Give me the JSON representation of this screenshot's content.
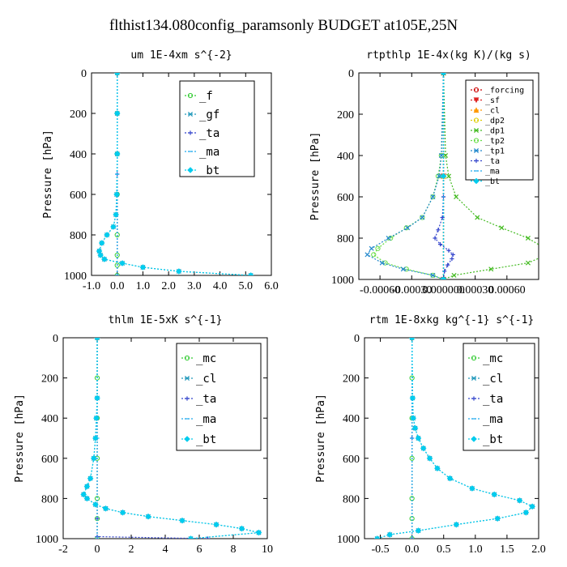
{
  "figure_title": "flthist134.080config_paramsonly  BUDGET at105E,25N",
  "chart_data": [
    {
      "type": "line",
      "title": "um  1E-4xm s^{-2}",
      "ylabel": "Pressure [hPa]",
      "xlim": [
        -1.0,
        6.0
      ],
      "ylim": [
        1000,
        0
      ],
      "y_inverted": true,
      "xticks": [
        "-1.0",
        "0.0",
        "1.0",
        "2.0",
        "3.0",
        "4.0",
        "5.0",
        "6.0"
      ],
      "yticks": [
        "0",
        "200",
        "400",
        "600",
        "800",
        "1000"
      ],
      "legend_position": "top-right",
      "series": [
        {
          "name": "_f",
          "color": "#33cc33",
          "marker": "o",
          "y": [
            0,
            200,
            400,
            600,
            800,
            900,
            950,
            1000
          ],
          "x": [
            0,
            0,
            0,
            0,
            0,
            0,
            0,
            0
          ]
        },
        {
          "name": "_gf",
          "color": "#2299bb",
          "marker": "x",
          "y": [
            0,
            200,
            400,
            600,
            700,
            760,
            800,
            840,
            880,
            900,
            920,
            940,
            960,
            980,
            1000
          ],
          "x": [
            0,
            0,
            0,
            -0.02,
            -0.05,
            -0.15,
            -0.4,
            -0.6,
            -0.7,
            -0.65,
            -0.5,
            0.2,
            1.0,
            2.4,
            5.2
          ]
        },
        {
          "name": "_ta",
          "color": "#3344cc",
          "marker": "+",
          "y": [
            0,
            500,
            1000
          ],
          "x": [
            0,
            0,
            0
          ]
        },
        {
          "name": "_ma",
          "color": "#22aaee",
          "marker": "dash",
          "y": [
            0,
            500,
            1000
          ],
          "x": [
            0,
            0,
            0
          ]
        },
        {
          "name": "_bt",
          "color": "#00ccee",
          "marker": "diamond",
          "y": [
            0,
            200,
            400,
            600,
            700,
            760,
            800,
            840,
            880,
            900,
            920,
            940,
            960,
            980,
            1000
          ],
          "x": [
            0,
            0,
            0,
            -0.02,
            -0.05,
            -0.15,
            -0.4,
            -0.6,
            -0.7,
            -0.65,
            -0.5,
            0.2,
            1.0,
            2.4,
            5.2
          ]
        }
      ]
    },
    {
      "type": "line",
      "title": "rtpthlp  1E-4x(kg K)/(kg s)",
      "ylabel": "Pressure [hPa]",
      "xlim": [
        -0.0008,
        0.0009
      ],
      "ylim": [
        1000,
        0
      ],
      "y_inverted": true,
      "xticks": [
        "-0.00060",
        "-0.00030",
        "0.000000",
        "0.00030",
        "0.00060"
      ],
      "yticks": [
        "0",
        "200",
        "400",
        "600",
        "800",
        "1000"
      ],
      "legend_position": "top-right",
      "series": [
        {
          "name": "_forcing",
          "color": "#cc0000",
          "marker": "o",
          "y": [
            0,
            500,
            1000
          ],
          "x": [
            0,
            0,
            0
          ]
        },
        {
          "name": "_sf",
          "color": "#dd2222",
          "marker": "v",
          "y": [
            0,
            500,
            1000
          ],
          "x": [
            0,
            0,
            0
          ]
        },
        {
          "name": "_cl",
          "color": "#ff9900",
          "marker": "^",
          "y": [
            0,
            500,
            1000
          ],
          "x": [
            0,
            0,
            0
          ]
        },
        {
          "name": "_dp2",
          "color": "#ddcc00",
          "marker": "o",
          "y": [
            0,
            500,
            1000
          ],
          "x": [
            0,
            0,
            0
          ]
        },
        {
          "name": "_dp1",
          "color": "#44bb22",
          "marker": "x",
          "y": [
            0,
            400,
            500,
            600,
            700,
            750,
            800,
            850,
            880,
            920,
            950,
            980,
            1000
          ],
          "x": [
            0,
            2e-05,
            5e-05,
            0.00012,
            0.00032,
            0.00055,
            0.0008,
            0.00096,
            0.00098,
            0.0008,
            0.00045,
            0.0001,
            0
          ]
        },
        {
          "name": "_tp2",
          "color": "#66dd44",
          "marker": "o",
          "y": [
            0,
            400,
            500,
            600,
            700,
            750,
            800,
            850,
            880,
            920,
            950,
            980,
            1000
          ],
          "x": [
            0,
            -2e-05,
            -5e-05,
            -0.0001,
            -0.0002,
            -0.00035,
            -0.0005,
            -0.00062,
            -0.00066,
            -0.00055,
            -0.00035,
            -0.0001,
            0
          ]
        },
        {
          "name": "_tp1",
          "color": "#2288cc",
          "marker": "x",
          "y": [
            0,
            400,
            500,
            600,
            700,
            750,
            800,
            850,
            880,
            920,
            950,
            980,
            1000
          ],
          "x": [
            0,
            -2e-05,
            -4e-05,
            -0.0001,
            -0.0002,
            -0.00034,
            -0.00052,
            -0.00068,
            -0.00072,
            -0.00058,
            -0.00038,
            -0.0001,
            0
          ]
        },
        {
          "name": "_ta",
          "color": "#3344cc",
          "marker": "+",
          "y": [
            0,
            600,
            700,
            760,
            800,
            830,
            860,
            880,
            900,
            930,
            960,
            1000
          ],
          "x": [
            0,
            0,
            -1e-05,
            -5e-05,
            -8e-05,
            -3e-05,
            5e-05,
            9e-05,
            8e-05,
            4e-05,
            1e-05,
            0
          ]
        },
        {
          "name": "_ma",
          "color": "#22aaee",
          "marker": "dash",
          "y": [
            0,
            500,
            1000
          ],
          "x": [
            0,
            0,
            0
          ]
        },
        {
          "name": "_bt",
          "color": "#00ccee",
          "marker": "diamond",
          "y": [
            0,
            500,
            1000
          ],
          "x": [
            0,
            0,
            0
          ]
        }
      ]
    },
    {
      "type": "line",
      "title": "thlm  1E-5xK s^{-1}",
      "ylabel": "Pressure [hPa]",
      "xlim": [
        -2,
        10
      ],
      "ylim": [
        1000,
        0
      ],
      "y_inverted": true,
      "xticks": [
        "-2",
        "0",
        "2",
        "4",
        "6",
        "8",
        "10"
      ],
      "yticks": [
        "0",
        "200",
        "400",
        "600",
        "800",
        "1000"
      ],
      "legend_position": "top-right",
      "series": [
        {
          "name": "_mc",
          "color": "#33cc33",
          "marker": "o",
          "y": [
            0,
            200,
            400,
            600,
            800,
            900,
            1000
          ],
          "x": [
            0,
            0,
            0,
            0,
            0,
            0,
            0
          ]
        },
        {
          "name": "_cl",
          "color": "#2299bb",
          "marker": "x",
          "y": [
            0,
            300,
            400,
            500,
            600,
            700,
            740,
            780,
            800,
            830,
            850,
            870,
            890,
            910,
            930,
            950,
            970,
            1000
          ],
          "x": [
            0,
            0,
            -0.05,
            -0.1,
            -0.2,
            -0.4,
            -0.6,
            -0.8,
            -0.6,
            -0.1,
            0.5,
            1.5,
            3,
            5,
            7,
            8.5,
            9.5,
            5.5
          ]
        },
        {
          "name": "_ta",
          "color": "#3344cc",
          "marker": "+",
          "y": [
            0,
            900,
            990,
            1000
          ],
          "x": [
            0,
            0,
            0,
            6.5
          ]
        },
        {
          "name": "_ma",
          "color": "#22aaee",
          "marker": "dash",
          "y": [
            0,
            500,
            1000
          ],
          "x": [
            0,
            0,
            0
          ]
        },
        {
          "name": "_bt",
          "color": "#00ccee",
          "marker": "diamond",
          "y": [
            0,
            300,
            400,
            500,
            600,
            700,
            740,
            780,
            800,
            830,
            850,
            870,
            890,
            910,
            930,
            950,
            970,
            1000
          ],
          "x": [
            0,
            0,
            -0.05,
            -0.1,
            -0.2,
            -0.4,
            -0.6,
            -0.8,
            -0.6,
            -0.1,
            0.5,
            1.5,
            3,
            5,
            7,
            8.5,
            9.5,
            5.5
          ]
        }
      ]
    },
    {
      "type": "line",
      "title": "rtm  1E-8xkg kg^{-1} s^{-1}",
      "ylabel": "Pressure [hPa]",
      "xlim": [
        -0.75,
        2.0
      ],
      "ylim": [
        1000,
        0
      ],
      "y_inverted": true,
      "xticks": [
        "-0.5",
        "0.0",
        "0.5",
        "1.0",
        "1.5",
        "2.0"
      ],
      "yticks": [
        "0",
        "200",
        "400",
        "600",
        "800",
        "1000"
      ],
      "legend_position": "top-right",
      "series": [
        {
          "name": "_mc",
          "color": "#33cc33",
          "marker": "o",
          "y": [
            0,
            200,
            400,
            600,
            800,
            900,
            1000
          ],
          "x": [
            0,
            0,
            0,
            0,
            0,
            0,
            0
          ]
        },
        {
          "name": "_cl",
          "color": "#2299bb",
          "marker": "x",
          "y": [
            0,
            300,
            400,
            450,
            500,
            550,
            600,
            650,
            700,
            750,
            780,
            810,
            840,
            870,
            900,
            930,
            960,
            980,
            1000
          ],
          "x": [
            0,
            0.01,
            0.02,
            0.05,
            0.1,
            0.18,
            0.28,
            0.4,
            0.6,
            0.95,
            1.3,
            1.7,
            1.9,
            1.8,
            1.35,
            0.7,
            0.1,
            -0.35,
            -0.55
          ]
        },
        {
          "name": "_ta",
          "color": "#3344cc",
          "marker": "+",
          "y": [
            0,
            500,
            1000
          ],
          "x": [
            0,
            0,
            0
          ]
        },
        {
          "name": "_ma",
          "color": "#22aaee",
          "marker": "dash",
          "y": [
            0,
            500,
            1000
          ],
          "x": [
            0,
            0,
            0
          ]
        },
        {
          "name": "_bt",
          "color": "#00ccee",
          "marker": "diamond",
          "y": [
            0,
            300,
            400,
            450,
            500,
            550,
            600,
            650,
            700,
            750,
            780,
            810,
            840,
            870,
            900,
            930,
            960,
            980,
            1000
          ],
          "x": [
            0,
            0.01,
            0.02,
            0.05,
            0.1,
            0.18,
            0.28,
            0.4,
            0.6,
            0.95,
            1.3,
            1.7,
            1.9,
            1.8,
            1.35,
            0.7,
            0.1,
            -0.35,
            -0.55
          ]
        }
      ]
    }
  ]
}
